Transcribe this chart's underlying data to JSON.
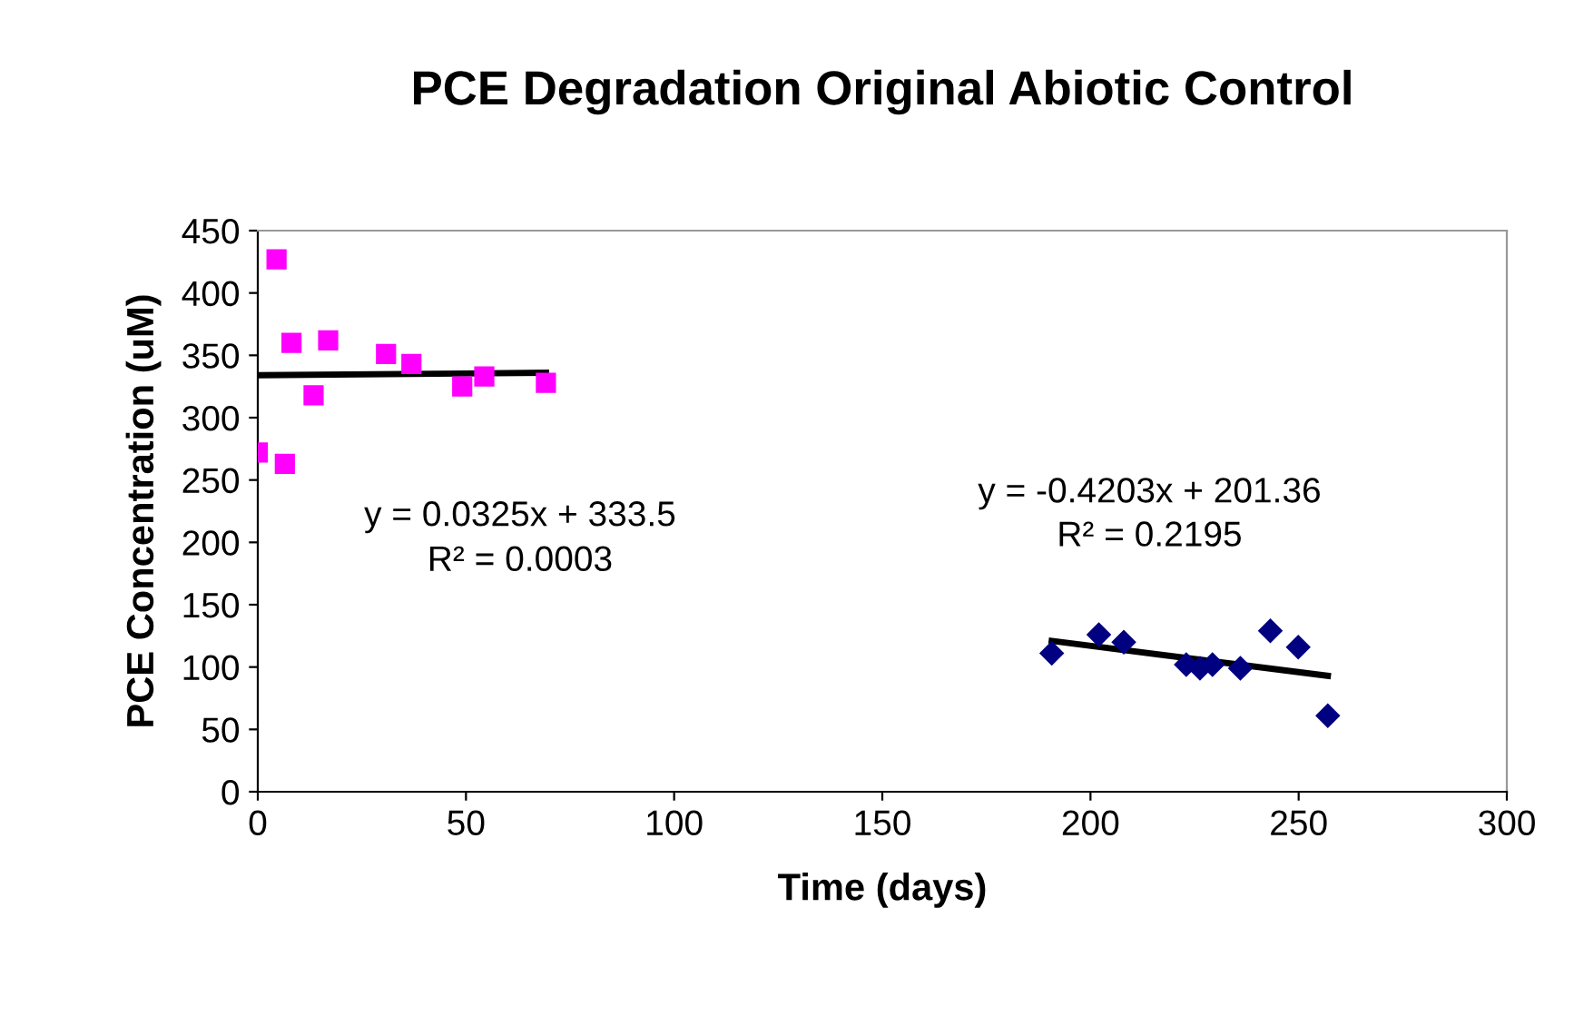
{
  "chart_data": {
    "type": "scatter",
    "title": "PCE Degradation Original Abiotic Control",
    "xlabel": "Time (days)",
    "ylabel": "PCE Concentration (uM)",
    "xlim": [
      0,
      300
    ],
    "xticks": [
      0,
      50,
      100,
      150,
      200,
      250,
      300
    ],
    "ylim": [
      0,
      450
    ],
    "yticks": [
      0,
      50,
      100,
      150,
      200,
      250,
      300,
      350,
      400,
      450
    ],
    "grid": false,
    "legend": false,
    "series": [
      {
        "marker": "square",
        "color": "#ff00ff",
        "x": [
          0,
          4.5,
          6.5,
          8.1,
          13.4,
          16.9,
          30.8,
          36.9,
          49.1,
          54.4,
          69.2
        ],
        "values": [
          272,
          427,
          263,
          360,
          318,
          362,
          351,
          343,
          325,
          333,
          328
        ]
      },
      {
        "marker": "diamond",
        "color": "#000080",
        "x": [
          190.7,
          202,
          208,
          223,
          226.3,
          229.3,
          236,
          243.2,
          249.9,
          257
        ],
        "values": [
          111,
          126,
          120,
          102,
          99,
          102,
          99,
          129,
          116,
          61
        ]
      },
      {
        "type": "line",
        "marker": "none",
        "color": "#000000",
        "x": [
          0,
          69.2
        ],
        "values": [
          334,
          336
        ]
      },
      {
        "type": "line",
        "marker": "none",
        "color": "#000000",
        "x": [
          190.7,
          257
        ],
        "values": [
          121,
          93
        ]
      }
    ],
    "annotations": [
      "y = 0.0325x + 333.5",
      "R² = 0.0003",
      "y = -0.4203x + 201.36",
      "R² = 0.2195"
    ]
  }
}
